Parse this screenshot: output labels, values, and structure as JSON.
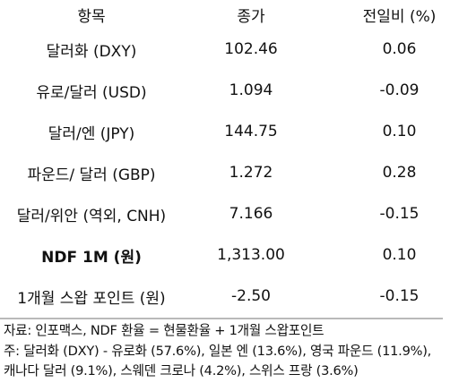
{
  "table": {
    "headers": [
      "항목",
      "종가",
      "전일비 (%)"
    ],
    "rows": [
      {
        "item": "달러화 (DXY)",
        "close": "102.46",
        "change": "0.06",
        "bold": false
      },
      {
        "item": "유로/달러 (USD)",
        "close": "1.094",
        "change": "-0.09",
        "bold": false
      },
      {
        "item": "달러/엔 (JPY)",
        "close": "144.75",
        "change": "0.10",
        "bold": false
      },
      {
        "item": "파운드/ 달러 (GBP)",
        "close": "1.272",
        "change": "0.28",
        "bold": false
      },
      {
        "item": "달러/위안 (역외, CNH)",
        "close": "7.166",
        "change": "-0.15",
        "bold": false
      },
      {
        "item": "NDF 1M (원)",
        "close": "1,313.00",
        "change": "0.10",
        "bold": true
      },
      {
        "item": "1개월 스왑 포인트 (원)",
        "close": "-2.50",
        "change": "-0.15",
        "bold": false
      }
    ]
  },
  "notes": [
    "자료: 인포맥스, NDF 환율 = 현물환율 + 1개월 스왑포인트",
    "주: 달러화 (DXY) - 유로화 (57.6%), 일본 엔 (13.6%), 영국 파운드 (11.9%),",
    "캐나다 달러 (9.1%), 스웨덴 크로나 (4.2%), 스위스 프랑 (3.6%)"
  ]
}
